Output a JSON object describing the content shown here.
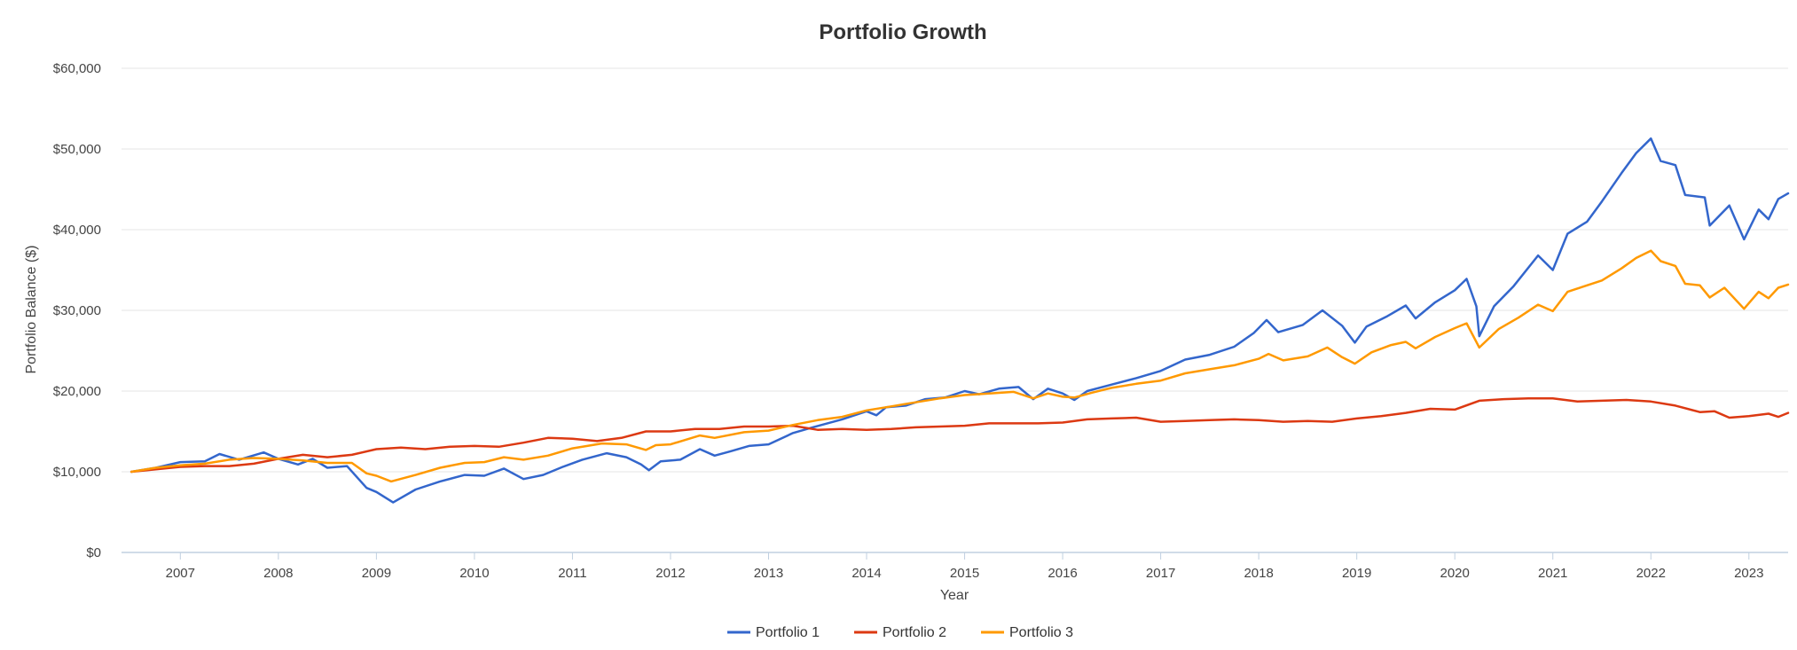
{
  "chart_data": {
    "type": "line",
    "title": "Portfolio Growth",
    "xlabel": "Year",
    "ylabel": "Portfolio Balance ($)",
    "xlim": [
      2006.4,
      2023.4
    ],
    "ylim": [
      0,
      60000
    ],
    "x_ticks": [
      "2007",
      "2008",
      "2009",
      "2010",
      "2011",
      "2012",
      "2013",
      "2014",
      "2015",
      "2016",
      "2017",
      "2018",
      "2019",
      "2020",
      "2021",
      "2022",
      "2023"
    ],
    "y_ticks": [
      {
        "value": 0,
        "label": "$0"
      },
      {
        "value": 10000,
        "label": "$10,000"
      },
      {
        "value": 20000,
        "label": "$20,000"
      },
      {
        "value": 30000,
        "label": "$30,000"
      },
      {
        "value": 40000,
        "label": "$40,000"
      },
      {
        "value": 50000,
        "label": "$50,000"
      },
      {
        "value": 60000,
        "label": "$60,000"
      }
    ],
    "grid": true,
    "legend_position": "bottom-center",
    "series": [
      {
        "name": "Portfolio 1",
        "color": "#3366cc",
        "points": [
          [
            2006.5,
            10000
          ],
          [
            2006.75,
            10500
          ],
          [
            2007.0,
            11200
          ],
          [
            2007.25,
            11300
          ],
          [
            2007.4,
            12200
          ],
          [
            2007.6,
            11500
          ],
          [
            2007.85,
            12400
          ],
          [
            2008.0,
            11600
          ],
          [
            2008.2,
            10900
          ],
          [
            2008.35,
            11600
          ],
          [
            2008.5,
            10500
          ],
          [
            2008.7,
            10700
          ],
          [
            2008.9,
            8000
          ],
          [
            2009.0,
            7500
          ],
          [
            2009.17,
            6200
          ],
          [
            2009.4,
            7800
          ],
          [
            2009.65,
            8800
          ],
          [
            2009.9,
            9600
          ],
          [
            2010.1,
            9500
          ],
          [
            2010.3,
            10400
          ],
          [
            2010.5,
            9100
          ],
          [
            2010.7,
            9600
          ],
          [
            2010.9,
            10600
          ],
          [
            2011.1,
            11500
          ],
          [
            2011.35,
            12300
          ],
          [
            2011.55,
            11800
          ],
          [
            2011.7,
            10900
          ],
          [
            2011.78,
            10200
          ],
          [
            2011.9,
            11300
          ],
          [
            2012.1,
            11500
          ],
          [
            2012.3,
            12800
          ],
          [
            2012.45,
            12000
          ],
          [
            2012.6,
            12500
          ],
          [
            2012.8,
            13200
          ],
          [
            2013.0,
            13400
          ],
          [
            2013.25,
            14800
          ],
          [
            2013.45,
            15500
          ],
          [
            2013.6,
            16000
          ],
          [
            2013.75,
            16500
          ],
          [
            2014.0,
            17500
          ],
          [
            2014.1,
            17000
          ],
          [
            2014.2,
            18000
          ],
          [
            2014.4,
            18200
          ],
          [
            2014.6,
            19000
          ],
          [
            2014.8,
            19200
          ],
          [
            2015.0,
            20000
          ],
          [
            2015.15,
            19600
          ],
          [
            2015.35,
            20300
          ],
          [
            2015.55,
            20500
          ],
          [
            2015.7,
            19000
          ],
          [
            2015.85,
            20300
          ],
          [
            2016.0,
            19700
          ],
          [
            2016.12,
            18900
          ],
          [
            2016.25,
            20000
          ],
          [
            2016.5,
            20800
          ],
          [
            2016.75,
            21600
          ],
          [
            2017.0,
            22500
          ],
          [
            2017.25,
            23900
          ],
          [
            2017.5,
            24500
          ],
          [
            2017.75,
            25500
          ],
          [
            2017.95,
            27200
          ],
          [
            2018.08,
            28800
          ],
          [
            2018.2,
            27300
          ],
          [
            2018.45,
            28200
          ],
          [
            2018.65,
            30000
          ],
          [
            2018.85,
            28100
          ],
          [
            2018.98,
            26000
          ],
          [
            2019.1,
            28000
          ],
          [
            2019.3,
            29200
          ],
          [
            2019.5,
            30600
          ],
          [
            2019.6,
            29000
          ],
          [
            2019.8,
            31000
          ],
          [
            2020.0,
            32500
          ],
          [
            2020.12,
            33900
          ],
          [
            2020.22,
            30500
          ],
          [
            2020.25,
            26800
          ],
          [
            2020.4,
            30500
          ],
          [
            2020.6,
            33000
          ],
          [
            2020.85,
            36800
          ],
          [
            2021.0,
            35000
          ],
          [
            2021.15,
            39500
          ],
          [
            2021.35,
            41000
          ],
          [
            2021.5,
            43500
          ],
          [
            2021.7,
            47000
          ],
          [
            2021.85,
            49500
          ],
          [
            2022.0,
            51300
          ],
          [
            2022.1,
            48500
          ],
          [
            2022.25,
            48000
          ],
          [
            2022.35,
            44300
          ],
          [
            2022.55,
            44000
          ],
          [
            2022.6,
            40500
          ],
          [
            2022.8,
            43000
          ],
          [
            2022.95,
            38800
          ],
          [
            2023.1,
            42500
          ],
          [
            2023.2,
            41300
          ],
          [
            2023.3,
            43800
          ],
          [
            2023.4,
            44500
          ]
        ]
      },
      {
        "name": "Portfolio 2",
        "color": "#dc3912",
        "points": [
          [
            2006.5,
            10000
          ],
          [
            2006.75,
            10300
          ],
          [
            2007.0,
            10600
          ],
          [
            2007.25,
            10700
          ],
          [
            2007.5,
            10700
          ],
          [
            2007.75,
            11000
          ],
          [
            2008.0,
            11600
          ],
          [
            2008.25,
            12100
          ],
          [
            2008.5,
            11800
          ],
          [
            2008.75,
            12100
          ],
          [
            2009.0,
            12800
          ],
          [
            2009.25,
            13000
          ],
          [
            2009.5,
            12800
          ],
          [
            2009.75,
            13100
          ],
          [
            2010.0,
            13200
          ],
          [
            2010.25,
            13100
          ],
          [
            2010.5,
            13600
          ],
          [
            2010.75,
            14200
          ],
          [
            2011.0,
            14100
          ],
          [
            2011.25,
            13800
          ],
          [
            2011.5,
            14200
          ],
          [
            2011.75,
            15000
          ],
          [
            2012.0,
            15000
          ],
          [
            2012.25,
            15300
          ],
          [
            2012.5,
            15300
          ],
          [
            2012.75,
            15600
          ],
          [
            2013.0,
            15600
          ],
          [
            2013.25,
            15700
          ],
          [
            2013.5,
            15200
          ],
          [
            2013.75,
            15300
          ],
          [
            2014.0,
            15200
          ],
          [
            2014.25,
            15300
          ],
          [
            2014.5,
            15500
          ],
          [
            2014.75,
            15600
          ],
          [
            2015.0,
            15700
          ],
          [
            2015.25,
            16000
          ],
          [
            2015.5,
            16000
          ],
          [
            2015.75,
            16000
          ],
          [
            2016.0,
            16100
          ],
          [
            2016.25,
            16500
          ],
          [
            2016.5,
            16600
          ],
          [
            2016.75,
            16700
          ],
          [
            2017.0,
            16200
          ],
          [
            2017.25,
            16300
          ],
          [
            2017.5,
            16400
          ],
          [
            2017.75,
            16500
          ],
          [
            2018.0,
            16400
          ],
          [
            2018.25,
            16200
          ],
          [
            2018.5,
            16300
          ],
          [
            2018.75,
            16200
          ],
          [
            2019.0,
            16600
          ],
          [
            2019.25,
            16900
          ],
          [
            2019.5,
            17300
          ],
          [
            2019.75,
            17800
          ],
          [
            2020.0,
            17700
          ],
          [
            2020.25,
            18800
          ],
          [
            2020.5,
            19000
          ],
          [
            2020.75,
            19100
          ],
          [
            2021.0,
            19100
          ],
          [
            2021.25,
            18700
          ],
          [
            2021.5,
            18800
          ],
          [
            2021.75,
            18900
          ],
          [
            2022.0,
            18700
          ],
          [
            2022.25,
            18200
          ],
          [
            2022.5,
            17400
          ],
          [
            2022.65,
            17500
          ],
          [
            2022.8,
            16700
          ],
          [
            2023.0,
            16900
          ],
          [
            2023.2,
            17200
          ],
          [
            2023.3,
            16800
          ],
          [
            2023.4,
            17300
          ]
        ]
      },
      {
        "name": "Portfolio 3",
        "color": "#ff9900",
        "points": [
          [
            2006.5,
            10000
          ],
          [
            2006.75,
            10500
          ],
          [
            2007.0,
            10800
          ],
          [
            2007.25,
            11000
          ],
          [
            2007.5,
            11500
          ],
          [
            2007.75,
            11700
          ],
          [
            2008.0,
            11600
          ],
          [
            2008.25,
            11400
          ],
          [
            2008.5,
            11100
          ],
          [
            2008.75,
            11100
          ],
          [
            2008.9,
            9800
          ],
          [
            2009.0,
            9500
          ],
          [
            2009.15,
            8800
          ],
          [
            2009.4,
            9600
          ],
          [
            2009.65,
            10500
          ],
          [
            2009.9,
            11100
          ],
          [
            2010.1,
            11200
          ],
          [
            2010.3,
            11800
          ],
          [
            2010.5,
            11500
          ],
          [
            2010.75,
            12000
          ],
          [
            2011.0,
            12900
          ],
          [
            2011.3,
            13500
          ],
          [
            2011.55,
            13400
          ],
          [
            2011.75,
            12700
          ],
          [
            2011.85,
            13300
          ],
          [
            2012.0,
            13400
          ],
          [
            2012.3,
            14500
          ],
          [
            2012.45,
            14200
          ],
          [
            2012.75,
            14900
          ],
          [
            2013.0,
            15100
          ],
          [
            2013.25,
            15800
          ],
          [
            2013.5,
            16400
          ],
          [
            2013.75,
            16800
          ],
          [
            2014.0,
            17600
          ],
          [
            2014.25,
            18100
          ],
          [
            2014.5,
            18600
          ],
          [
            2014.75,
            19100
          ],
          [
            2015.0,
            19500
          ],
          [
            2015.25,
            19700
          ],
          [
            2015.5,
            19900
          ],
          [
            2015.7,
            19100
          ],
          [
            2015.85,
            19700
          ],
          [
            2016.0,
            19300
          ],
          [
            2016.12,
            19200
          ],
          [
            2016.3,
            19800
          ],
          [
            2016.5,
            20400
          ],
          [
            2016.75,
            20900
          ],
          [
            2017.0,
            21300
          ],
          [
            2017.25,
            22200
          ],
          [
            2017.5,
            22700
          ],
          [
            2017.75,
            23200
          ],
          [
            2018.0,
            24000
          ],
          [
            2018.1,
            24600
          ],
          [
            2018.25,
            23800
          ],
          [
            2018.5,
            24300
          ],
          [
            2018.7,
            25400
          ],
          [
            2018.85,
            24200
          ],
          [
            2018.98,
            23400
          ],
          [
            2019.15,
            24800
          ],
          [
            2019.35,
            25700
          ],
          [
            2019.5,
            26100
          ],
          [
            2019.6,
            25300
          ],
          [
            2019.8,
            26700
          ],
          [
            2020.0,
            27800
          ],
          [
            2020.12,
            28400
          ],
          [
            2020.25,
            25400
          ],
          [
            2020.45,
            27700
          ],
          [
            2020.65,
            29100
          ],
          [
            2020.85,
            30700
          ],
          [
            2021.0,
            29900
          ],
          [
            2021.15,
            32300
          ],
          [
            2021.3,
            32900
          ],
          [
            2021.5,
            33700
          ],
          [
            2021.7,
            35200
          ],
          [
            2021.85,
            36500
          ],
          [
            2022.0,
            37400
          ],
          [
            2022.1,
            36100
          ],
          [
            2022.25,
            35500
          ],
          [
            2022.35,
            33300
          ],
          [
            2022.5,
            33100
          ],
          [
            2022.6,
            31600
          ],
          [
            2022.75,
            32800
          ],
          [
            2022.95,
            30200
          ],
          [
            2023.1,
            32300
          ],
          [
            2023.2,
            31500
          ],
          [
            2023.3,
            32800
          ],
          [
            2023.4,
            33200
          ]
        ]
      }
    ]
  }
}
